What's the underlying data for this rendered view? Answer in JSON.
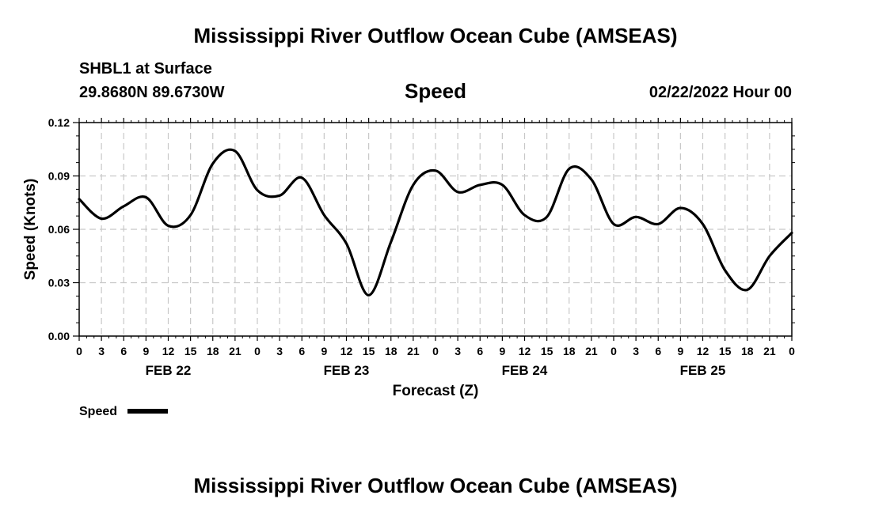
{
  "header": {
    "title": "Mississippi River Outflow Ocean Cube (AMSEAS)",
    "station": "SHBL1 at Surface",
    "coordinates": "29.8680N  89.6730W",
    "variable": "Speed",
    "datetime": "02/22/2022 Hour 00"
  },
  "footer": {
    "title": "Mississippi River Outflow Ocean Cube (AMSEAS)"
  },
  "chart_data": {
    "type": "line",
    "xlabel": "Forecast (Z)",
    "ylabel": "Speed (Knots)",
    "ylim": [
      0,
      0.12
    ],
    "yticks": [
      "0.00",
      "0.03",
      "0.06",
      "0.09",
      "0.12"
    ],
    "xlim_hours": [
      0,
      96
    ],
    "xtick_labels": [
      "0",
      "3",
      "6",
      "9",
      "12",
      "15",
      "18",
      "21",
      "0",
      "3",
      "6",
      "9",
      "12",
      "15",
      "18",
      "21",
      "0",
      "3",
      "6",
      "9",
      "12",
      "15",
      "18",
      "21",
      "0",
      "3",
      "6",
      "9",
      "12",
      "15",
      "18",
      "21",
      "0"
    ],
    "date_labels": [
      {
        "label": "FEB 22",
        "hour": 12
      },
      {
        "label": "FEB 23",
        "hour": 36
      },
      {
        "label": "FEB 24",
        "hour": 60
      },
      {
        "label": "FEB 25",
        "hour": 84
      }
    ],
    "grid": true,
    "legend": {
      "label": "Speed",
      "placement": "bottom-left"
    },
    "series": [
      {
        "name": "Speed",
        "color": "#000000",
        "x": [
          0,
          3,
          6,
          9,
          12,
          15,
          18,
          21,
          24,
          27,
          30,
          33,
          36,
          39,
          42,
          45,
          48,
          51,
          54,
          57,
          60,
          63,
          66,
          69,
          72,
          75,
          78,
          81,
          84,
          87,
          90,
          93,
          96
        ],
        "y": [
          0.077,
          0.066,
          0.073,
          0.078,
          0.062,
          0.068,
          0.097,
          0.104,
          0.082,
          0.079,
          0.089,
          0.068,
          0.052,
          0.023,
          0.053,
          0.085,
          0.093,
          0.081,
          0.085,
          0.085,
          0.068,
          0.067,
          0.094,
          0.088,
          0.063,
          0.067,
          0.063,
          0.072,
          0.063,
          0.037,
          0.026,
          0.045,
          0.058
        ]
      }
    ]
  }
}
